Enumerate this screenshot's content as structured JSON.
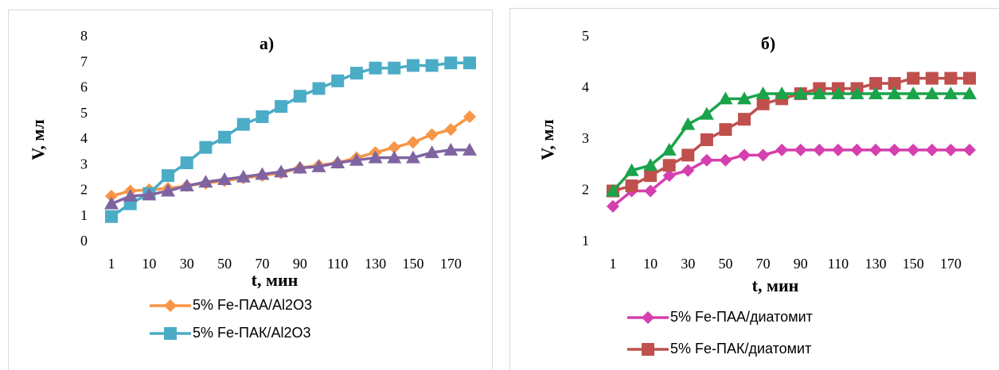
{
  "chart_data": [
    {
      "type": "line",
      "title": "а)",
      "x_label": "t, мин",
      "y_label": "V, мл",
      "categories": [
        "1",
        null,
        "10",
        null,
        "30",
        null,
        "50",
        null,
        "70",
        null,
        "90",
        null,
        "110",
        null,
        "130",
        null,
        "150",
        null,
        "170",
        null
      ],
      "ylim": [
        0,
        8
      ],
      "yticks": [
        0,
        1,
        2,
        3,
        4,
        5,
        6,
        7,
        8
      ],
      "series": [
        {
          "name": "5% Fe-ПАА/Al2O3",
          "color": "#f79646",
          "marker": "diamond",
          "values": [
            1.8,
            2.0,
            2.05,
            2.1,
            2.2,
            2.3,
            2.4,
            2.5,
            2.6,
            2.7,
            2.9,
            3.0,
            3.1,
            3.3,
            3.5,
            3.7,
            3.9,
            4.2,
            4.4,
            4.9
          ]
        },
        {
          "name": "5% Fe-ПАК/Al2O3",
          "color": "#4bacc6",
          "marker": "square",
          "values": [
            1.0,
            1.5,
            1.9,
            2.6,
            3.1,
            3.7,
            4.1,
            4.6,
            4.9,
            5.3,
            5.7,
            6.0,
            6.3,
            6.6,
            6.8,
            6.8,
            6.9,
            6.9,
            7.0,
            7.0
          ]
        },
        {
          "color": "#8064a2",
          "marker": "triangle",
          "values": [
            1.5,
            1.8,
            1.85,
            2.0,
            2.2,
            2.35,
            2.45,
            2.55,
            2.65,
            2.75,
            2.9,
            2.95,
            3.1,
            3.2,
            3.3,
            3.3,
            3.3,
            3.5,
            3.6,
            3.6
          ]
        }
      ]
    },
    {
      "type": "line",
      "title": "б)",
      "x_label": "t, мин",
      "y_label": "V, мл",
      "categories": [
        "1",
        null,
        "10",
        null,
        "30",
        null,
        "50",
        null,
        "70",
        null,
        "90",
        null,
        "110",
        null,
        "130",
        null,
        "150",
        null,
        "170",
        null
      ],
      "ylim": [
        1,
        5
      ],
      "yticks": [
        1,
        2,
        3,
        4,
        5
      ],
      "series": [
        {
          "name": "5% Fe-ПАА/диатомит",
          "color": "#d63fae",
          "marker": "diamond",
          "values": [
            1.7,
            2.0,
            2.0,
            2.3,
            2.4,
            2.6,
            2.6,
            2.7,
            2.7,
            2.8,
            2.8,
            2.8,
            2.8,
            2.8,
            2.8,
            2.8,
            2.8,
            2.8,
            2.8,
            2.8
          ]
        },
        {
          "name": "5% Fe-ПАК/диатомит",
          "color": "#c0504d",
          "marker": "square",
          "values": [
            2.0,
            2.1,
            2.3,
            2.5,
            2.7,
            3.0,
            3.2,
            3.4,
            3.7,
            3.8,
            3.9,
            4.0,
            4.0,
            4.0,
            4.1,
            4.1,
            4.2,
            4.2,
            4.2,
            4.2
          ]
        },
        {
          "color": "#1aa34a",
          "marker": "triangle",
          "values": [
            2.0,
            2.4,
            2.5,
            2.8,
            3.3,
            3.5,
            3.8,
            3.8,
            3.9,
            3.9,
            3.9,
            3.9,
            3.9,
            3.9,
            3.9,
            3.9,
            3.9,
            3.9,
            3.9,
            3.9
          ]
        }
      ]
    }
  ]
}
